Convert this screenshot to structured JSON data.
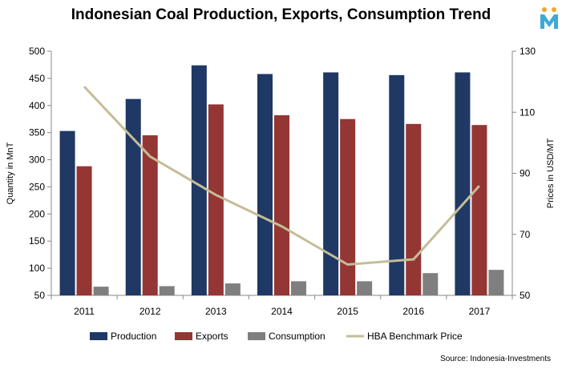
{
  "chart_data": {
    "type": "bar",
    "title": "Indonesian Coal Production, Exports, Consumption Trend",
    "categories": [
      "2011",
      "2012",
      "2013",
      "2014",
      "2015",
      "2016",
      "2017"
    ],
    "series": [
      {
        "name": "Production",
        "axis": "left",
        "kind": "bar",
        "color": "#1f3864",
        "values": [
          353,
          412,
          474,
          458,
          461,
          456,
          461
        ]
      },
      {
        "name": "Exports",
        "axis": "left",
        "kind": "bar",
        "color": "#943634",
        "values": [
          288,
          345,
          402,
          382,
          375,
          366,
          364
        ]
      },
      {
        "name": "Consumption",
        "axis": "left",
        "kind": "bar",
        "color": "#7f7f7f",
        "values": [
          66,
          67,
          72,
          76,
          76,
          91,
          97
        ]
      },
      {
        "name": "HBA Benchmark Price",
        "axis": "right",
        "kind": "line",
        "color": "#c4bd97",
        "values": [
          118.4,
          95.5,
          82.9,
          72.6,
          60.1,
          61.8,
          85.9
        ]
      }
    ],
    "y_left": {
      "label": "Quantity in MnT",
      "ylim": [
        50,
        500
      ],
      "ticks": [
        50,
        100,
        150,
        200,
        250,
        300,
        350,
        400,
        450,
        500
      ]
    },
    "y_right": {
      "label": "Prices in USD/MT",
      "ylim": [
        50,
        130
      ],
      "ticks": [
        50,
        70,
        90,
        110,
        130
      ]
    },
    "grid": false,
    "legend_position": "bottom",
    "source": "Source: Indonesia-Investments"
  }
}
